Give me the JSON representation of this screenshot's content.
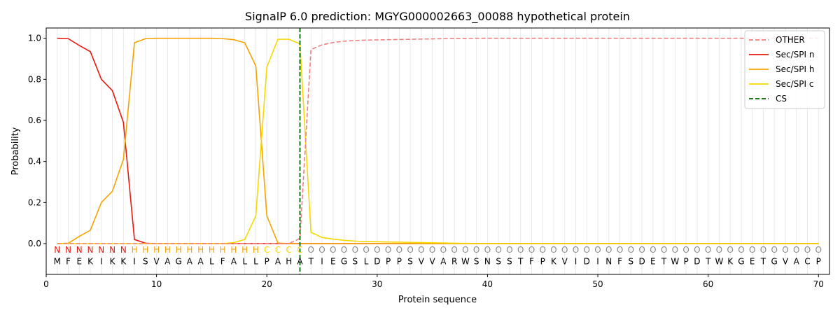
{
  "chart_data": {
    "type": "line",
    "title": "SignalP 6.0 prediction: MGYG000002663_00088 hypothetical protein",
    "xlabel": "Protein sequence",
    "ylabel": "Probability",
    "xlim": [
      0,
      71
    ],
    "ylim": [
      -0.15,
      1.05
    ],
    "x_ticks": [
      0,
      10,
      20,
      30,
      40,
      50,
      60,
      70
    ],
    "y_ticks": [
      0.0,
      0.2,
      0.4,
      0.6,
      0.8,
      1.0
    ],
    "x_tick_labels": [
      "0",
      "10",
      "20",
      "30",
      "40",
      "50",
      "60",
      "70"
    ],
    "y_tick_labels": [
      "0.0",
      "0.2",
      "0.4",
      "0.6",
      "0.8",
      "1.0"
    ],
    "grid": "vertical lines at every residue",
    "legend_position": "top-right",
    "sequence": "MFEKIKKISVAGAALFALLPAHATIEGSLDPPSVVARWSNSSTFPKVIDINFSDETWPDTWKGETGVACP",
    "region_labels": "NNNNNNNHHHHHHHHHHHHCCCCOOOOOOOOOOOOOOOOOOOOOOOOOOOOOOOOOOOOOOOOOOOOOOO",
    "region_colors": {
      "N": "#e8190f",
      "H": "#f5a300",
      "C": "#f5d800",
      "O": "#888888"
    },
    "cleavage_site": 23,
    "series": [
      {
        "name": "OTHER",
        "color": "#f08080",
        "dash": true,
        "values": [
          0,
          0,
          0,
          0,
          0,
          0,
          0,
          0,
          0,
          0,
          0,
          0,
          0,
          0,
          0,
          0,
          0,
          0,
          0,
          0,
          0,
          0,
          0.025,
          0.945,
          0.968,
          0.979,
          0.986,
          0.989,
          0.991,
          0.992,
          0.993,
          0.994,
          0.995,
          0.996,
          0.997,
          0.998,
          0.999,
          0.999,
          1,
          1,
          1,
          1,
          1,
          1,
          1,
          1,
          1,
          1,
          1,
          1,
          1,
          1,
          1,
          1,
          1,
          1,
          1,
          1,
          1,
          1,
          1,
          1,
          1,
          1,
          1,
          1,
          1,
          1,
          1,
          1
        ]
      },
      {
        "name": "Sec/SPI n",
        "color": "#e8190f",
        "dash": false,
        "values": [
          1.0,
          0.998,
          0.965,
          0.935,
          0.8,
          0.745,
          0.59,
          0.02,
          0.002,
          0,
          0,
          0,
          0,
          0,
          0,
          0,
          0,
          0,
          0,
          0,
          0,
          0,
          0,
          0,
          0,
          0,
          0,
          0,
          0,
          0,
          0,
          0,
          0,
          0,
          0,
          0,
          0,
          0,
          0,
          0,
          0,
          0,
          0,
          0,
          0,
          0,
          0,
          0,
          0,
          0,
          0,
          0,
          0,
          0,
          0,
          0,
          0,
          0,
          0,
          0,
          0,
          0,
          0,
          0,
          0,
          0,
          0,
          0,
          0,
          0
        ]
      },
      {
        "name": "Sec/SPI h",
        "color": "#f5a300",
        "dash": false,
        "values": [
          0,
          0.002,
          0.035,
          0.065,
          0.2,
          0.255,
          0.41,
          0.978,
          0.998,
          1.0,
          1.0,
          1.0,
          1.0,
          1.0,
          1.0,
          0.998,
          0.993,
          0.978,
          0.865,
          0.135,
          0.003,
          0,
          0,
          0,
          0,
          0,
          0,
          0,
          0,
          0,
          0,
          0,
          0,
          0,
          0,
          0,
          0,
          0,
          0,
          0,
          0,
          0,
          0,
          0,
          0,
          0,
          0,
          0,
          0,
          0,
          0,
          0,
          0,
          0,
          0,
          0,
          0,
          0,
          0,
          0,
          0,
          0,
          0,
          0,
          0,
          0,
          0,
          0,
          0,
          0
        ]
      },
      {
        "name": "Sec/SPI c",
        "color": "#f5d800",
        "dash": false,
        "values": [
          0,
          0,
          0,
          0,
          0,
          0,
          0,
          0,
          0,
          0,
          0,
          0,
          0,
          0,
          0,
          0,
          0.005,
          0.02,
          0.135,
          0.86,
          0.995,
          0.995,
          0.973,
          0.055,
          0.03,
          0.022,
          0.016,
          0.012,
          0.01,
          0.009,
          0.008,
          0.007,
          0.006,
          0.005,
          0.004,
          0.003,
          0.002,
          0.001,
          0,
          0,
          0,
          0,
          0,
          0,
          0,
          0,
          0,
          0,
          0,
          0,
          0,
          0,
          0,
          0,
          0,
          0,
          0,
          0,
          0,
          0,
          0,
          0,
          0,
          0,
          0,
          0,
          0,
          0,
          0,
          0
        ]
      },
      {
        "name": "CS",
        "color": "#006400",
        "dash": true,
        "values": []
      }
    ]
  }
}
